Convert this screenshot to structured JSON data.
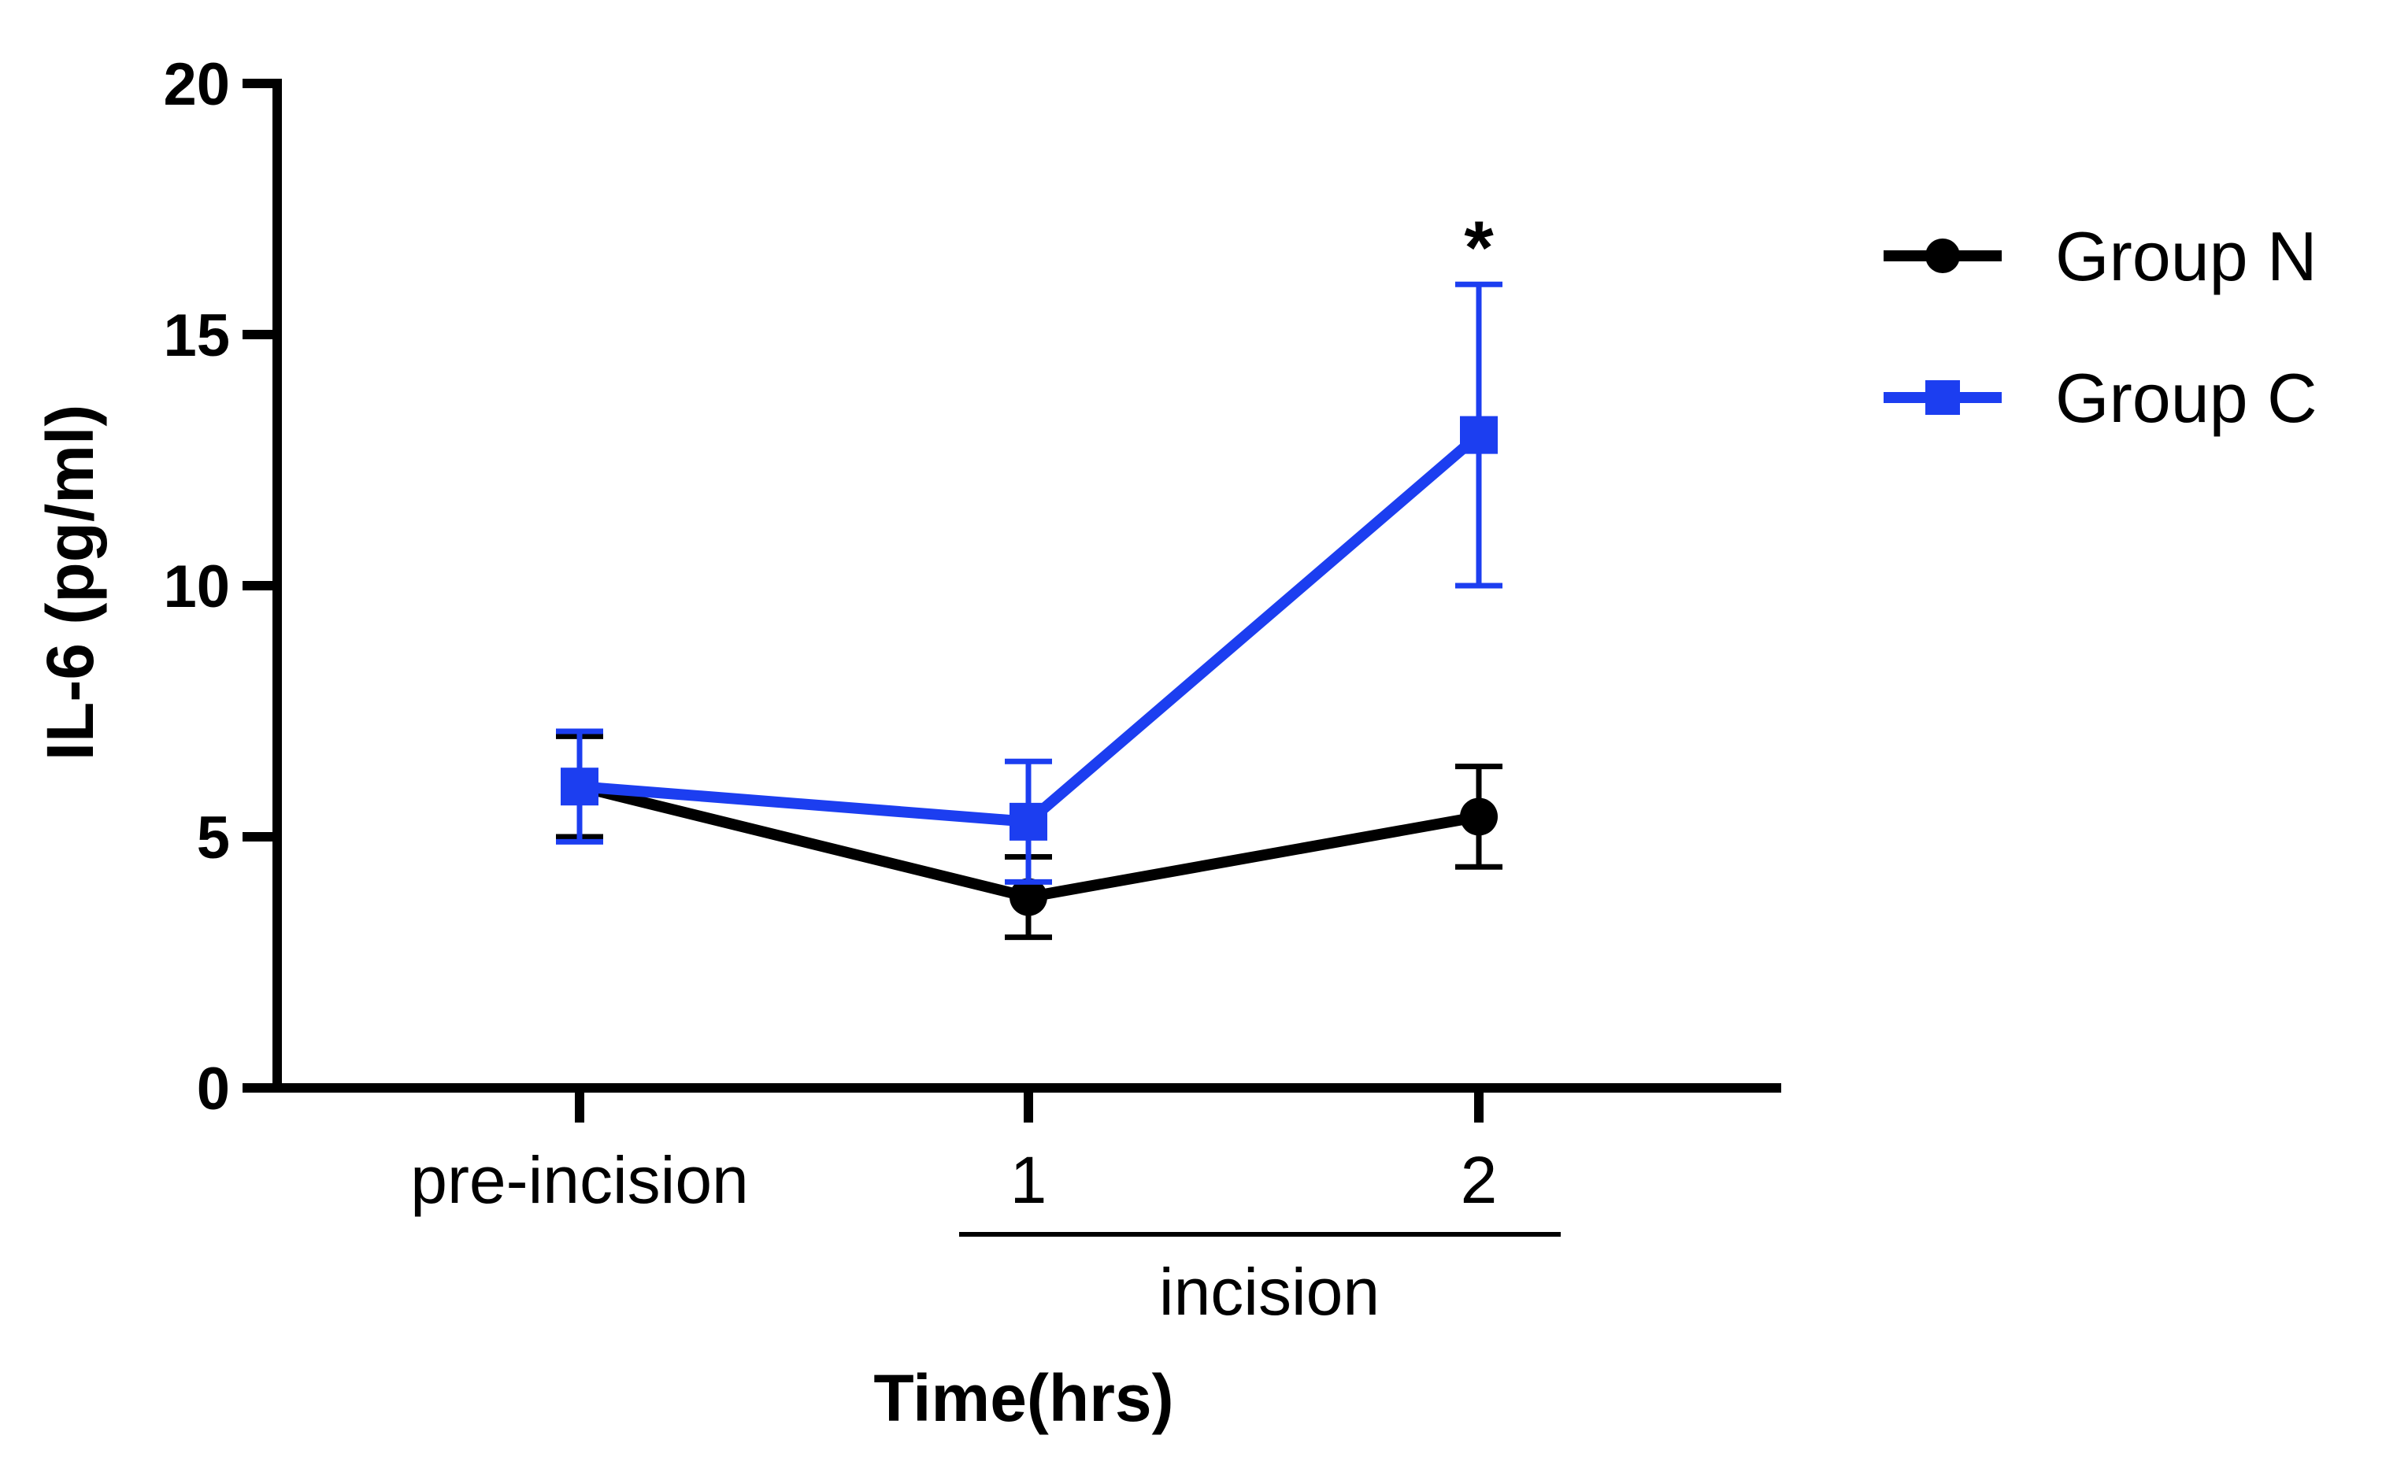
{
  "chart_data": {
    "type": "line",
    "title": "",
    "xlabel": "Time(hrs)",
    "ylabel": "IL-6 (pg/ml)",
    "ylim": [
      0,
      20
    ],
    "yticks": [
      "0",
      "5",
      "10",
      "15",
      "20"
    ],
    "categories": [
      "pre-incision",
      "1",
      "2"
    ],
    "group_label": "incision",
    "grid": false,
    "legend_position": "right",
    "series": [
      {
        "name": "Group N",
        "color": "#000000",
        "marker": "circle",
        "values": [
          6.0,
          3.8,
          5.4
        ],
        "errors": [
          1.0,
          0.8,
          1.0
        ]
      },
      {
        "name": "Group C",
        "color": "#1c3ef0",
        "marker": "square",
        "values": [
          6.0,
          5.3,
          13.0
        ],
        "errors": [
          1.1,
          1.2,
          3.0
        ]
      }
    ],
    "annotations": [
      {
        "text": "*",
        "category": "2",
        "y": 17.0
      }
    ]
  }
}
